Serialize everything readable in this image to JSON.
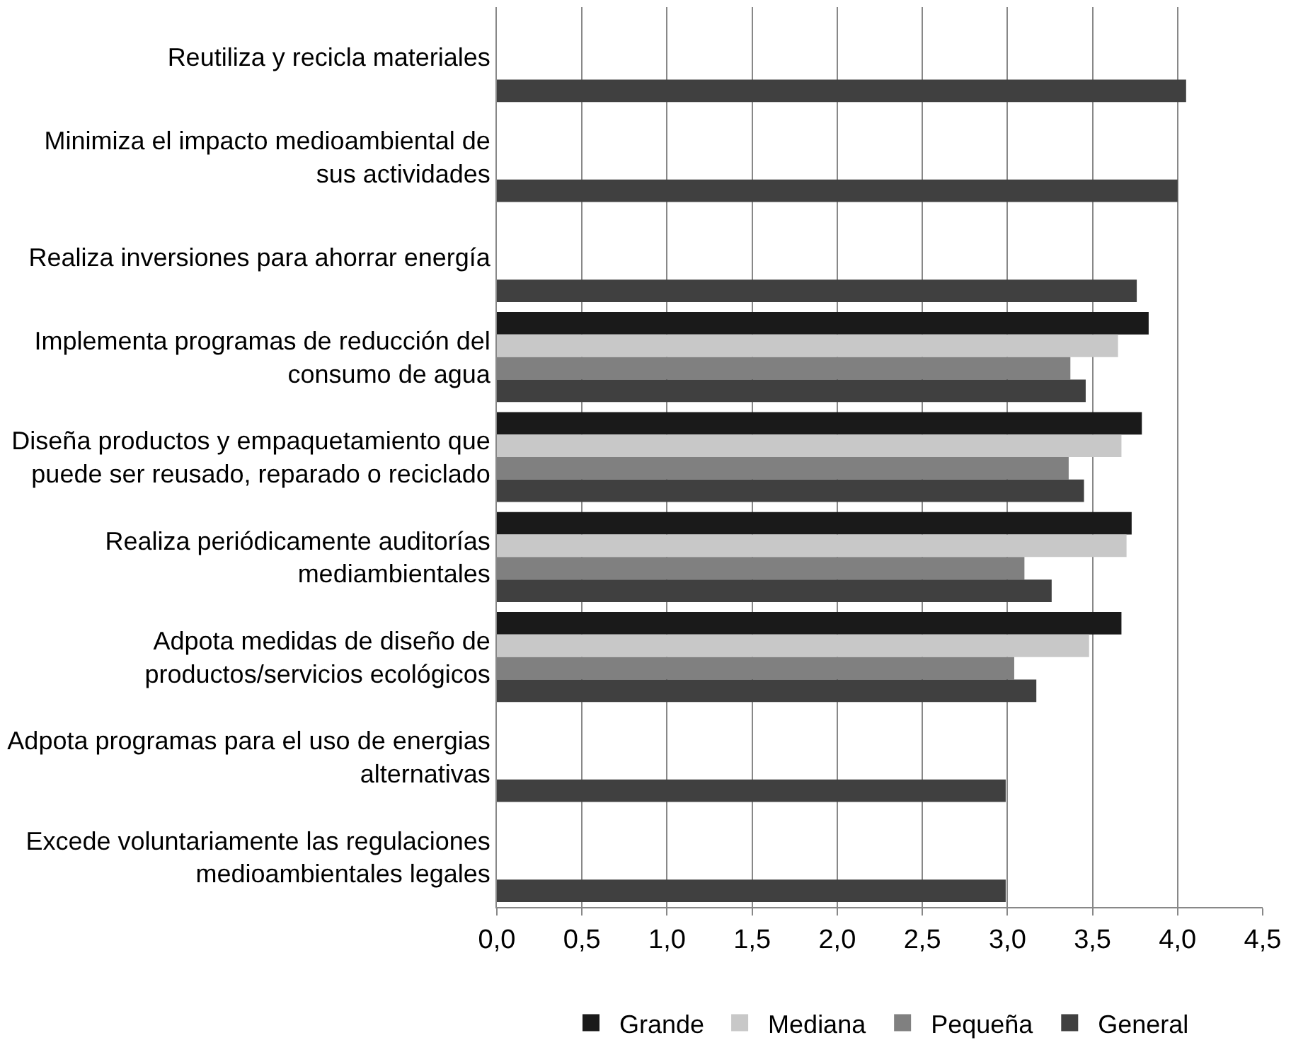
{
  "chart_data": {
    "type": "bar",
    "orientation": "horizontal",
    "categories": [
      "Reutiliza y recicla materiales",
      "Minimiza el impacto medioambiental de\nsus actividades",
      "Realiza inversiones para ahorrar energía",
      "Implementa programas de reducción del\nconsumo de agua",
      "Diseña productos y empaquetamiento que\npuede ser reusado, reparado o reciclado",
      "Realiza periódicamente auditorías\nmediambientales",
      "Adpota medidas de diseño de\nproductos/servicios ecológicos",
      "Adpota programas para el uso de energias\nalternativas",
      "Excede voluntariamente las regulaciones\nmedioambientales legales"
    ],
    "series": [
      {
        "name": "Grande",
        "color": "#1a1a1a",
        "values": [
          null,
          null,
          null,
          3.83,
          3.79,
          3.73,
          3.67,
          null,
          null
        ]
      },
      {
        "name": "Mediana",
        "color": "#c8c8c8",
        "values": [
          null,
          null,
          null,
          3.65,
          3.67,
          3.7,
          3.48,
          null,
          null
        ]
      },
      {
        "name": "Pequeña",
        "color": "#808080",
        "values": [
          null,
          null,
          null,
          3.37,
          3.36,
          3.1,
          3.04,
          null,
          null
        ]
      },
      {
        "name": "General",
        "color": "#404040",
        "values": [
          4.05,
          4.0,
          3.76,
          3.46,
          3.45,
          3.26,
          3.17,
          2.99,
          2.99
        ]
      }
    ],
    "xlim": [
      0,
      4.5
    ],
    "xticks": [
      {
        "value": 0,
        "label": "0,0"
      },
      {
        "value": 0.5,
        "label": "0,5"
      },
      {
        "value": 1,
        "label": "1,0"
      },
      {
        "value": 1.5,
        "label": "1,5"
      },
      {
        "value": 2,
        "label": "2,0"
      },
      {
        "value": 2.5,
        "label": "2,5"
      },
      {
        "value": 3,
        "label": "3,0"
      },
      {
        "value": 3.5,
        "label": "3,5"
      },
      {
        "value": 4,
        "label": "4,0"
      },
      {
        "value": 4.5,
        "label": "4,5"
      }
    ],
    "grid": "x",
    "legend": "bottom"
  }
}
